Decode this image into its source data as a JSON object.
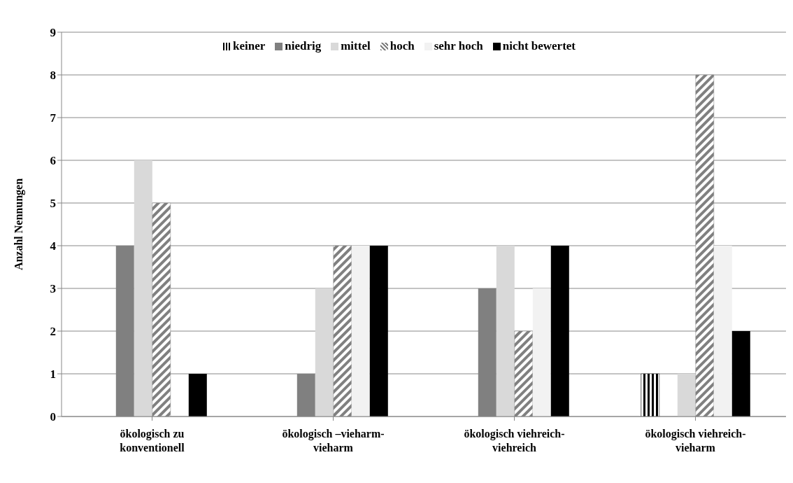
{
  "chart_data": {
    "type": "bar",
    "ylabel": "Anzahl Nennungen",
    "categories": [
      "ökologisch zu konventionell",
      "ökologisch –vieharm-vieharm",
      "ökologisch viehreich-viehreich",
      "ökologisch viehreich-vieharm"
    ],
    "series": [
      {
        "name": "keiner",
        "color": "#000000",
        "values": [
          0,
          0,
          0,
          1
        ]
      },
      {
        "name": "niedrig",
        "color": "#808080",
        "values": [
          4,
          1,
          3,
          0
        ]
      },
      {
        "name": "mittel",
        "color": "#d9d9d9",
        "values": [
          6,
          3,
          4,
          1
        ]
      },
      {
        "name": "hoch",
        "color": "#808080",
        "values": [
          5,
          4,
          2,
          8
        ]
      },
      {
        "name": "sehr hoch",
        "color": "#f2f2f2",
        "values": [
          0,
          4,
          3,
          4
        ]
      },
      {
        "name": "nicht bewertet",
        "color": "#000000",
        "values": [
          1,
          4,
          4,
          2
        ]
      }
    ],
    "ylim": [
      0,
      9
    ],
    "yticks": [
      0,
      1,
      2,
      3,
      4,
      5,
      6,
      7,
      8,
      9
    ],
    "grid": "y",
    "legend": "top"
  }
}
